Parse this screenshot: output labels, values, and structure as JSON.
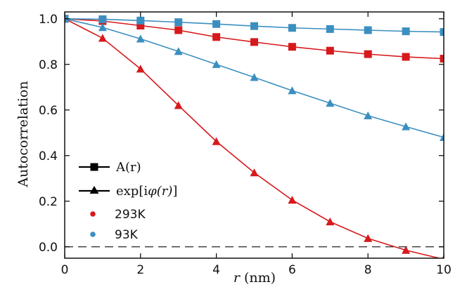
{
  "chart_data": {
    "type": "line",
    "title": "",
    "xlabel": "r (nm)",
    "xlabel_var": "r",
    "xlabel_unit": "(nm)",
    "ylabel": "Autocorrelation",
    "xlim": [
      0,
      10
    ],
    "ylim": [
      -0.05,
      1.03
    ],
    "xticks": [
      0,
      2,
      4,
      6,
      8,
      10
    ],
    "yticks": [
      0.0,
      0.2,
      0.4,
      0.6,
      0.8,
      1.0
    ],
    "x": [
      0,
      1,
      2,
      3,
      4,
      5,
      6,
      7,
      8,
      9,
      10
    ],
    "reference_line": {
      "y": 0.0,
      "style": "dashed",
      "color": "#222222"
    },
    "series": [
      {
        "name": "A(r) 293K",
        "marker": "square",
        "color": "#d7191c",
        "values": [
          1.0,
          0.99,
          0.97,
          0.95,
          0.92,
          0.898,
          0.877,
          0.86,
          0.845,
          0.833,
          0.825
        ]
      },
      {
        "name": "A(r) 93K",
        "marker": "square",
        "color": "#3a8fc0",
        "values": [
          1.0,
          0.998,
          0.992,
          0.985,
          0.977,
          0.968,
          0.96,
          0.955,
          0.95,
          0.945,
          0.942
        ]
      },
      {
        "name": "exp[i phi(r)] 293K",
        "marker": "triangle",
        "color": "#d7191c",
        "values": [
          1.0,
          0.915,
          0.78,
          0.62,
          0.462,
          0.325,
          0.205,
          0.11,
          0.037,
          -0.015,
          -0.055
        ]
      },
      {
        "name": "exp[i phi(r)] 93K",
        "marker": "triangle",
        "color": "#3a8fc0",
        "values": [
          1.0,
          0.962,
          0.912,
          0.857,
          0.8,
          0.743,
          0.685,
          0.63,
          0.575,
          0.527,
          0.48
        ]
      }
    ],
    "legend": {
      "placement": "lower-left",
      "entries": [
        {
          "label": "A(r)",
          "kind": "line-square",
          "color": "#000000"
        },
        {
          "label_prefix": "exp[i",
          "label_var": "φ(r)",
          "label_suffix": "]",
          "kind": "line-triangle",
          "color": "#000000"
        },
        {
          "label": "293K",
          "kind": "dot",
          "color": "#d7191c"
        },
        {
          "label": "93K",
          "kind": "dot",
          "color": "#3a8fc0"
        }
      ]
    }
  }
}
